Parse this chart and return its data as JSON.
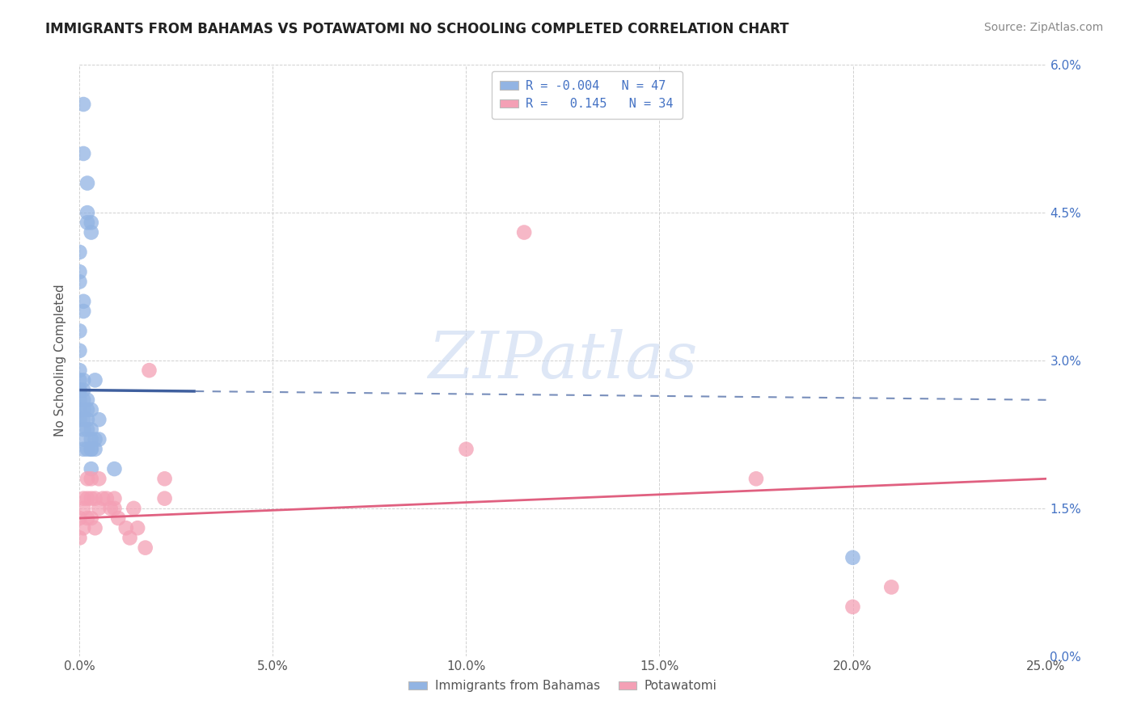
{
  "title": "IMMIGRANTS FROM BAHAMAS VS POTAWATOMI NO SCHOOLING COMPLETED CORRELATION CHART",
  "source": "Source: ZipAtlas.com",
  "ylabel": "No Schooling Completed",
  "xlim": [
    0.0,
    0.25
  ],
  "ylim": [
    0.0,
    0.06
  ],
  "xticks": [
    0.0,
    0.05,
    0.1,
    0.15,
    0.2,
    0.25
  ],
  "yticks": [
    0.0,
    0.015,
    0.03,
    0.045,
    0.06
  ],
  "ytick_labels_right": [
    "0.0%",
    "1.5%",
    "3.0%",
    "4.5%",
    "6.0%"
  ],
  "xtick_labels": [
    "0.0%",
    "5.0%",
    "10.0%",
    "15.0%",
    "20.0%",
    "25.0%"
  ],
  "blue_color": "#92b4e3",
  "pink_color": "#f4a0b5",
  "blue_line_color": "#3f5f9e",
  "pink_line_color": "#e06080",
  "R_blue": -0.004,
  "N_blue": 47,
  "R_pink": 0.145,
  "N_pink": 34,
  "blue_x": [
    0.001,
    0.001,
    0.002,
    0.002,
    0.003,
    0.0,
    0.0,
    0.001,
    0.001,
    0.002,
    0.003,
    0.0,
    0.0,
    0.0,
    0.0,
    0.0,
    0.0,
    0.0,
    0.001,
    0.001,
    0.001,
    0.001,
    0.001,
    0.002,
    0.002,
    0.002,
    0.002,
    0.003,
    0.003,
    0.003,
    0.003,
    0.004,
    0.004,
    0.004,
    0.005,
    0.005,
    0.0,
    0.0,
    0.0,
    0.001,
    0.001,
    0.001,
    0.002,
    0.003,
    0.003,
    0.009,
    0.2
  ],
  "blue_y": [
    0.056,
    0.051,
    0.048,
    0.045,
    0.044,
    0.041,
    0.038,
    0.036,
    0.035,
    0.044,
    0.043,
    0.033,
    0.031,
    0.029,
    0.028,
    0.027,
    0.026,
    0.039,
    0.028,
    0.027,
    0.026,
    0.025,
    0.024,
    0.026,
    0.025,
    0.024,
    0.023,
    0.025,
    0.023,
    0.022,
    0.021,
    0.028,
    0.022,
    0.021,
    0.024,
    0.022,
    0.027,
    0.025,
    0.024,
    0.023,
    0.022,
    0.021,
    0.021,
    0.021,
    0.019,
    0.019,
    0.01
  ],
  "pink_x": [
    0.0,
    0.0,
    0.001,
    0.001,
    0.001,
    0.002,
    0.002,
    0.002,
    0.003,
    0.003,
    0.003,
    0.004,
    0.004,
    0.005,
    0.005,
    0.006,
    0.007,
    0.008,
    0.009,
    0.009,
    0.01,
    0.012,
    0.013,
    0.014,
    0.015,
    0.017,
    0.018,
    0.022,
    0.022,
    0.1,
    0.115,
    0.175,
    0.2,
    0.21
  ],
  "pink_y": [
    0.014,
    0.012,
    0.016,
    0.015,
    0.013,
    0.018,
    0.016,
    0.014,
    0.018,
    0.016,
    0.014,
    0.016,
    0.013,
    0.018,
    0.015,
    0.016,
    0.016,
    0.015,
    0.016,
    0.015,
    0.014,
    0.013,
    0.012,
    0.015,
    0.013,
    0.011,
    0.029,
    0.018,
    0.016,
    0.021,
    0.043,
    0.018,
    0.005,
    0.007
  ],
  "blue_line_x": [
    0.0,
    0.03,
    0.03,
    0.25
  ],
  "blue_line_solid_end": 0.03,
  "pink_line_start_y": 0.014,
  "pink_line_end_y": 0.018,
  "watermark_text": "ZIPatlas",
  "watermark_color": "#c8d8f0",
  "watermark_alpha": 0.6,
  "background_color": "#ffffff",
  "grid_color": "#cccccc",
  "legend_text_color": "#333333",
  "legend_rv_color": "#4472c4",
  "title_fontsize": 12,
  "source_fontsize": 10,
  "axis_label_fontsize": 11,
  "tick_fontsize": 11
}
